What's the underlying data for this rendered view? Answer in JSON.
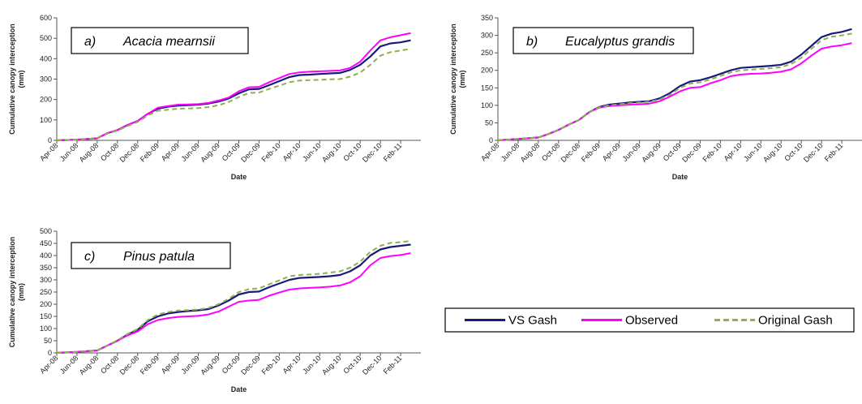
{
  "colors": {
    "vs_gash": "#1a1a7a",
    "observed": "#ff00ff",
    "original_gash": "#8db050"
  },
  "legend": {
    "placement": "right-middle",
    "entries": [
      "VS Gash",
      "Observed",
      "Original Gash"
    ]
  },
  "chart_data": [
    {
      "type": "line",
      "title_letter": "a)",
      "title": "Acacia mearnsii",
      "xlabel": "Date",
      "ylabel": "Cumulative canopy interception (mm)",
      "ylim": [
        0,
        600
      ],
      "yticks": [
        0,
        100,
        200,
        300,
        400,
        500,
        600
      ],
      "xlim": [
        "2008-04",
        "2011-04"
      ],
      "xticks": [
        "Apr-08",
        "Jun-08",
        "Aug-08",
        "Oct-08",
        "Dec-08",
        "Feb-09",
        "Apr-09",
        "Jun-09",
        "Aug-09",
        "Oct-09",
        "Dec-09",
        "Feb-10",
        "Apr-10",
        "Jun-10",
        "Aug-10",
        "Oct-10",
        "Dec-10",
        "Feb-11"
      ],
      "grid": false,
      "x": [
        "Apr-08",
        "Jun-08",
        "Aug-08",
        "Sep-08",
        "Oct-08",
        "Nov-08",
        "Dec-08",
        "Jan-09",
        "Feb-09",
        "Mar-09",
        "Apr-09",
        "May-09",
        "Jun-09",
        "Jul-09",
        "Aug-09",
        "Sep-09",
        "Oct-09",
        "Nov-09",
        "Dec-09",
        "Jan-10",
        "Feb-10",
        "Mar-10",
        "Apr-10",
        "May-10",
        "Jun-10",
        "Jul-10",
        "Aug-10",
        "Sep-10",
        "Oct-10",
        "Nov-10",
        "Dec-10",
        "Jan-11",
        "Feb-11",
        "Mar-11"
      ],
      "series": [
        {
          "name": "VS Gash",
          "values": [
            0,
            3,
            10,
            35,
            50,
            75,
            95,
            130,
            155,
            165,
            170,
            172,
            175,
            180,
            190,
            205,
            230,
            250,
            252,
            270,
            290,
            310,
            320,
            322,
            325,
            328,
            330,
            345,
            370,
            410,
            460,
            475,
            480,
            490
          ]
        },
        {
          "name": "Observed",
          "values": [
            0,
            3,
            10,
            35,
            50,
            75,
            95,
            130,
            160,
            168,
            175,
            176,
            178,
            183,
            195,
            210,
            240,
            260,
            262,
            285,
            305,
            325,
            333,
            336,
            338,
            340,
            342,
            355,
            385,
            440,
            490,
            505,
            515,
            525
          ]
        },
        {
          "name": "Original Gash",
          "values": [
            0,
            3,
            10,
            33,
            48,
            70,
            90,
            122,
            145,
            150,
            155,
            156,
            158,
            163,
            172,
            188,
            212,
            232,
            234,
            252,
            268,
            285,
            293,
            295,
            297,
            299,
            300,
            312,
            332,
            370,
            415,
            432,
            440,
            448
          ]
        }
      ]
    },
    {
      "type": "line",
      "title_letter": "b)",
      "title": "Eucalyptus grandis",
      "xlabel": "Date",
      "ylabel": "Cumulative canopy interception (mm)",
      "ylim": [
        0,
        350
      ],
      "yticks": [
        0,
        50,
        100,
        150,
        200,
        250,
        300,
        350
      ],
      "xlim": [
        "2008-04",
        "2011-04"
      ],
      "xticks": [
        "Apr-08",
        "Jun-08",
        "Aug-08",
        "Oct-08",
        "Dec-08",
        "Feb-09",
        "Apr-09",
        "Jun-09",
        "Aug-09",
        "Oct-09",
        "Dec-09",
        "Feb-10",
        "Apr-10",
        "Jun-10",
        "Aug-10",
        "Oct-10",
        "Dec-10",
        "Feb-11"
      ],
      "grid": false,
      "x": [
        "Apr-08",
        "Jun-08",
        "Aug-08",
        "Sep-08",
        "Oct-08",
        "Nov-08",
        "Dec-08",
        "Jan-09",
        "Feb-09",
        "Mar-09",
        "Apr-09",
        "May-09",
        "Jun-09",
        "Jul-09",
        "Aug-09",
        "Sep-09",
        "Oct-09",
        "Nov-09",
        "Dec-09",
        "Jan-10",
        "Feb-10",
        "Mar-10",
        "Apr-10",
        "May-10",
        "Jun-10",
        "Jul-10",
        "Aug-10",
        "Sep-10",
        "Oct-10",
        "Nov-10",
        "Dec-10",
        "Jan-11",
        "Feb-11",
        "Mar-11"
      ],
      "series": [
        {
          "name": "VS Gash",
          "values": [
            0,
            4,
            8,
            18,
            30,
            45,
            58,
            80,
            95,
            102,
            105,
            108,
            110,
            112,
            120,
            135,
            155,
            168,
            172,
            180,
            190,
            200,
            207,
            209,
            211,
            213,
            216,
            225,
            245,
            270,
            295,
            305,
            310,
            318
          ]
        },
        {
          "name": "Observed",
          "values": [
            0,
            4,
            8,
            18,
            30,
            45,
            58,
            80,
            93,
            98,
            100,
            102,
            103,
            105,
            112,
            125,
            140,
            150,
            152,
            163,
            172,
            183,
            188,
            190,
            191,
            193,
            196,
            203,
            220,
            242,
            262,
            268,
            272,
            278
          ]
        },
        {
          "name": "Original Gash",
          "values": [
            0,
            4,
            8,
            18,
            30,
            45,
            58,
            80,
            94,
            100,
            103,
            106,
            108,
            110,
            117,
            130,
            150,
            162,
            166,
            174,
            184,
            194,
            200,
            202,
            204,
            206,
            209,
            218,
            236,
            262,
            286,
            296,
            300,
            305
          ]
        }
      ]
    },
    {
      "type": "line",
      "title_letter": "c)",
      "title": "Pinus patula",
      "xlabel": "Date",
      "ylabel": "Cumulative canopy interception (mm)",
      "ylim": [
        0,
        500
      ],
      "yticks": [
        0,
        50,
        100,
        150,
        200,
        250,
        300,
        350,
        400,
        450,
        500
      ],
      "xlim": [
        "2008-04",
        "2011-04"
      ],
      "xticks": [
        "Apr-08",
        "Jun-08",
        "Aug-08",
        "Oct-08",
        "Dec-08",
        "Feb-09",
        "Apr-09",
        "Jun-09",
        "Aug-09",
        "Oct-09",
        "Dec-09",
        "Feb-10",
        "Apr-10",
        "Jun-10",
        "Aug-10",
        "Oct-10",
        "Dec-10",
        "Feb-11"
      ],
      "grid": false,
      "x": [
        "Apr-08",
        "Jun-08",
        "Aug-08",
        "Sep-08",
        "Oct-08",
        "Nov-08",
        "Dec-08",
        "Jan-09",
        "Feb-09",
        "Mar-09",
        "Apr-09",
        "May-09",
        "Jun-09",
        "Jul-09",
        "Aug-09",
        "Sep-09",
        "Oct-09",
        "Nov-09",
        "Dec-09",
        "Jan-10",
        "Feb-10",
        "Mar-10",
        "Apr-10",
        "May-10",
        "Jun-10",
        "Jul-10",
        "Aug-10",
        "Sep-10",
        "Oct-10",
        "Nov-10",
        "Dec-10",
        "Jan-11",
        "Feb-11",
        "Mar-11"
      ],
      "series": [
        {
          "name": "VS Gash",
          "values": [
            0,
            4,
            10,
            30,
            50,
            75,
            95,
            130,
            150,
            162,
            168,
            172,
            175,
            180,
            195,
            215,
            240,
            250,
            252,
            270,
            285,
            300,
            308,
            310,
            312,
            315,
            320,
            335,
            360,
            400,
            425,
            435,
            440,
            445
          ]
        },
        {
          "name": "Observed",
          "values": [
            0,
            4,
            10,
            30,
            50,
            72,
            88,
            118,
            135,
            143,
            148,
            150,
            152,
            158,
            170,
            190,
            210,
            215,
            218,
            235,
            248,
            260,
            265,
            267,
            269,
            272,
            277,
            290,
            315,
            360,
            390,
            398,
            402,
            410
          ]
        },
        {
          "name": "Original Gash",
          "values": [
            0,
            4,
            10,
            30,
            52,
            78,
            98,
            135,
            158,
            168,
            174,
            176,
            178,
            185,
            200,
            222,
            250,
            262,
            265,
            282,
            298,
            315,
            320,
            322,
            325,
            330,
            335,
            350,
            375,
            415,
            440,
            452,
            455,
            460
          ]
        }
      ]
    }
  ]
}
